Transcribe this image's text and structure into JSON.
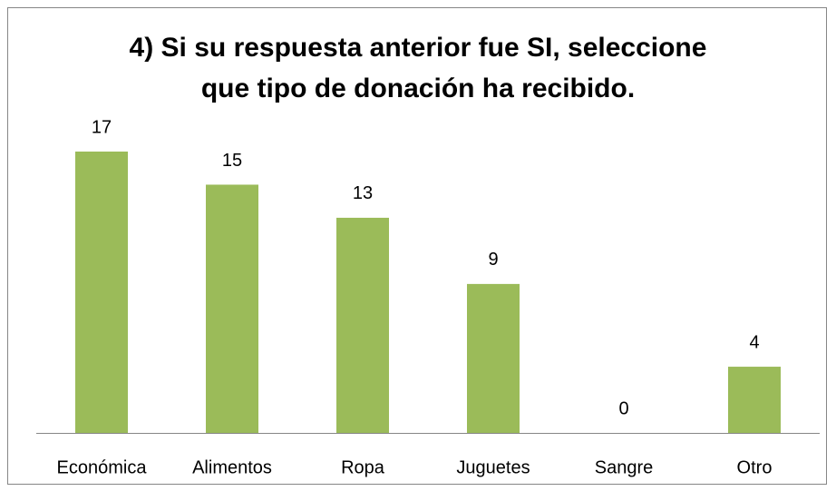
{
  "chart_data": {
    "type": "bar",
    "title": "4) Si su respuesta anterior fue SI, seleccione que tipo de donación ha recibido.",
    "categories": [
      "Económica",
      "Alimentos",
      "Ropa",
      "Juguetes",
      "Sangre",
      "Otro"
    ],
    "values": [
      17,
      15,
      13,
      9,
      0,
      4
    ],
    "color": "#9bbb59"
  }
}
